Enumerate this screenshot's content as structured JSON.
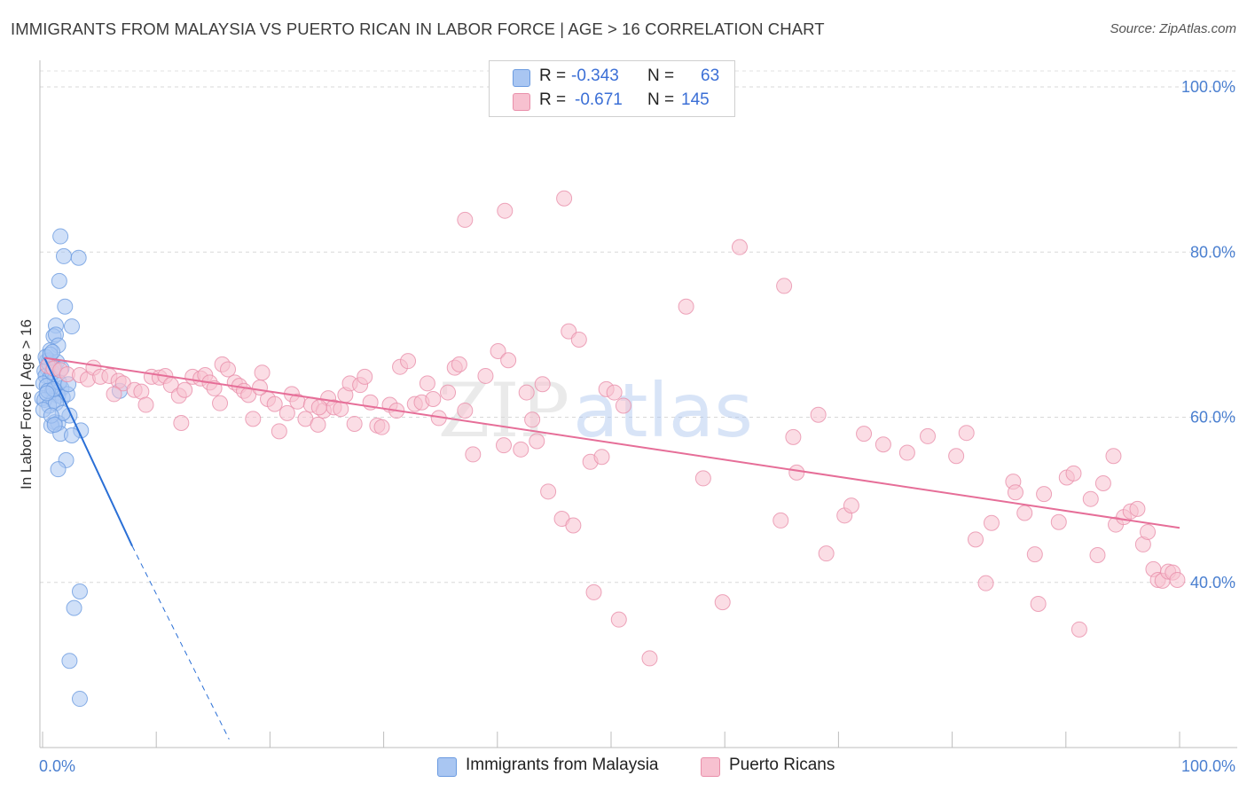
{
  "header": {
    "title": "IMMIGRANTS FROM MALAYSIA VS PUERTO RICAN IN LABOR FORCE | AGE > 16 CORRELATION CHART",
    "source": "Source: ZipAtlas.com"
  },
  "watermark": {
    "part1": "ZIP",
    "part2": "atlas"
  },
  "legend": {
    "items": [
      {
        "r_label": "R =",
        "r_value": "-0.343",
        "n_label": "N =",
        "n_value": "63",
        "color": "#a9c6f2",
        "border": "#6b9be0"
      },
      {
        "r_label": "R =",
        "r_value": "-0.671",
        "n_label": "N =",
        "n_value": "145",
        "color": "#f7c1d0",
        "border": "#e98faa"
      }
    ]
  },
  "bottom_legend": [
    {
      "label": "Immigrants from Malaysia",
      "color": "#a9c6f2",
      "border": "#6b9be0"
    },
    {
      "label": "Puerto Ricans",
      "color": "#f7c1d0",
      "border": "#e98faa"
    }
  ],
  "chart_data": {
    "type": "scatter",
    "xlabel": "",
    "ylabel": "In Labor Force | Age > 16",
    "xlim": [
      0,
      100
    ],
    "ylim": [
      20,
      100
    ],
    "x_tick_labels": [
      {
        "x": 0,
        "label": "0.0%"
      },
      {
        "x": 100,
        "label": "100.0%"
      }
    ],
    "y_tick_labels": [
      {
        "y": 100,
        "label": "100.0%"
      },
      {
        "y": 80,
        "label": "80.0%"
      },
      {
        "y": 60,
        "label": "60.0%"
      },
      {
        "y": 40,
        "label": "40.0%"
      }
    ],
    "grid": true,
    "legend_position": "top-center",
    "series": [
      {
        "name": "Immigrants from Malaysia",
        "color": "#6b9be0",
        "fill": "#a9c6f2",
        "trend_color": "#2a6fd6",
        "trend": {
          "x0": 0.4,
          "y0": 67.2,
          "x1": 8.1,
          "y1": 44.4,
          "x_dash_end": 16.6,
          "y_dash_end": 21.0
        },
        "points": [
          [
            1.8,
            81.9
          ],
          [
            2.1,
            79.5
          ],
          [
            3.4,
            79.3
          ],
          [
            1.7,
            76.5
          ],
          [
            2.2,
            73.4
          ],
          [
            1.4,
            71.1
          ],
          [
            2.8,
            71.0
          ],
          [
            1.2,
            69.8
          ],
          [
            1.4,
            70.0
          ],
          [
            1.6,
            68.7
          ],
          [
            0.9,
            68.1
          ],
          [
            0.6,
            66.8
          ],
          [
            0.8,
            66.9
          ],
          [
            1.0,
            66.4
          ],
          [
            1.3,
            66.0
          ],
          [
            0.7,
            65.8
          ],
          [
            0.4,
            65.6
          ],
          [
            0.5,
            65.0
          ],
          [
            0.9,
            64.8
          ],
          [
            1.3,
            64.6
          ],
          [
            0.3,
            64.1
          ],
          [
            0.6,
            63.8
          ],
          [
            1.1,
            63.2
          ],
          [
            1.9,
            63.5
          ],
          [
            1.5,
            63.0
          ],
          [
            1.6,
            62.6
          ],
          [
            2.0,
            62.4
          ],
          [
            2.4,
            62.8
          ],
          [
            0.2,
            62.3
          ],
          [
            0.4,
            62.1
          ],
          [
            1.2,
            62.0
          ],
          [
            0.8,
            61.4
          ],
          [
            0.3,
            60.9
          ],
          [
            2.6,
            60.2
          ],
          [
            1.3,
            59.4
          ],
          [
            1.6,
            59.3
          ],
          [
            1.0,
            59.0
          ],
          [
            3.6,
            58.4
          ],
          [
            1.8,
            58.0
          ],
          [
            2.8,
            57.8
          ],
          [
            2.3,
            54.8
          ],
          [
            1.6,
            53.7
          ],
          [
            0.8,
            66.5
          ],
          [
            1.5,
            66.7
          ],
          [
            1.1,
            65.4
          ],
          [
            0.5,
            67.3
          ],
          [
            1.9,
            65.9
          ],
          [
            0.7,
            63.2
          ],
          [
            1.4,
            61.7
          ],
          [
            2.0,
            60.5
          ],
          [
            0.9,
            67.6
          ],
          [
            1.7,
            64.2
          ],
          [
            1.2,
            63.4
          ],
          [
            0.6,
            62.9
          ],
          [
            2.5,
            64.0
          ],
          [
            1.0,
            60.2
          ],
          [
            1.3,
            59.1
          ],
          [
            7.0,
            63.2
          ],
          [
            3.5,
            38.9
          ],
          [
            3.0,
            36.9
          ],
          [
            2.6,
            30.5
          ],
          [
            3.5,
            25.9
          ],
          [
            1.1,
            67.9
          ]
        ]
      },
      {
        "name": "Puerto Ricans",
        "color": "#e98faa",
        "fill": "#f7c1d0",
        "trend_color": "#e66e98",
        "trend": {
          "x0": 0.4,
          "y0": 67.2,
          "x1": 100,
          "y1": 46.6
        },
        "points": [
          [
            0.7,
            66.2
          ],
          [
            1.2,
            65.9
          ],
          [
            1.8,
            65.7
          ],
          [
            2.4,
            65.2
          ],
          [
            3.5,
            65.1
          ],
          [
            4.2,
            64.6
          ],
          [
            4.7,
            66.0
          ],
          [
            5.3,
            64.9
          ],
          [
            6.1,
            65.0
          ],
          [
            6.9,
            64.4
          ],
          [
            7.3,
            64.1
          ],
          [
            8.3,
            63.3
          ],
          [
            8.9,
            63.1
          ],
          [
            9.8,
            64.9
          ],
          [
            10.5,
            64.8
          ],
          [
            11.0,
            65.0
          ],
          [
            11.5,
            63.9
          ],
          [
            12.2,
            62.6
          ],
          [
            12.7,
            63.3
          ],
          [
            12.4,
            59.3
          ],
          [
            13.4,
            64.9
          ],
          [
            14.1,
            64.7
          ],
          [
            14.5,
            65.1
          ],
          [
            14.9,
            64.2
          ],
          [
            15.3,
            63.5
          ],
          [
            15.8,
            61.7
          ],
          [
            16.0,
            66.4
          ],
          [
            16.5,
            65.8
          ],
          [
            17.1,
            64.2
          ],
          [
            17.5,
            63.8
          ],
          [
            17.9,
            63.2
          ],
          [
            18.3,
            62.7
          ],
          [
            18.7,
            59.8
          ],
          [
            19.5,
            65.4
          ],
          [
            20.0,
            62.2
          ],
          [
            20.6,
            61.6
          ],
          [
            21.0,
            58.3
          ],
          [
            21.7,
            60.5
          ],
          [
            22.1,
            62.8
          ],
          [
            22.6,
            61.9
          ],
          [
            23.3,
            59.8
          ],
          [
            23.8,
            61.5
          ],
          [
            24.4,
            59.1
          ],
          [
            24.9,
            60.8
          ],
          [
            25.3,
            62.3
          ],
          [
            25.8,
            61.2
          ],
          [
            26.4,
            61.0
          ],
          [
            26.8,
            62.7
          ],
          [
            27.2,
            64.1
          ],
          [
            27.6,
            59.2
          ],
          [
            28.1,
            63.9
          ],
          [
            28.5,
            64.9
          ],
          [
            29.0,
            61.8
          ],
          [
            29.6,
            59.0
          ],
          [
            30.0,
            58.8
          ],
          [
            30.7,
            61.5
          ],
          [
            31.3,
            60.8
          ],
          [
            31.6,
            66.1
          ],
          [
            32.3,
            66.8
          ],
          [
            32.9,
            61.6
          ],
          [
            33.5,
            61.8
          ],
          [
            34.0,
            64.1
          ],
          [
            34.5,
            62.2
          ],
          [
            35.0,
            59.9
          ],
          [
            35.8,
            63.0
          ],
          [
            36.4,
            66.0
          ],
          [
            36.8,
            66.4
          ],
          [
            37.3,
            60.8
          ],
          [
            38.0,
            55.5
          ],
          [
            37.3,
            83.9
          ],
          [
            39.1,
            65.0
          ],
          [
            40.2,
            68.0
          ],
          [
            40.7,
            56.6
          ],
          [
            41.1,
            66.9
          ],
          [
            42.2,
            56.1
          ],
          [
            42.7,
            63.0
          ],
          [
            43.2,
            59.7
          ],
          [
            43.6,
            57.1
          ],
          [
            44.1,
            64.0
          ],
          [
            44.6,
            51.0
          ],
          [
            45.8,
            47.7
          ],
          [
            46.4,
            70.4
          ],
          [
            47.3,
            69.4
          ],
          [
            46.8,
            46.9
          ],
          [
            48.3,
            54.6
          ],
          [
            48.6,
            38.8
          ],
          [
            49.3,
            55.2
          ],
          [
            49.7,
            63.4
          ],
          [
            50.4,
            63.0
          ],
          [
            51.2,
            61.4
          ],
          [
            50.8,
            35.5
          ],
          [
            53.5,
            30.8
          ],
          [
            56.7,
            73.4
          ],
          [
            58.2,
            52.6
          ],
          [
            59.9,
            37.6
          ],
          [
            61.4,
            80.6
          ],
          [
            65.0,
            47.5
          ],
          [
            65.3,
            75.9
          ],
          [
            66.1,
            57.6
          ],
          [
            66.4,
            53.3
          ],
          [
            68.3,
            60.3
          ],
          [
            69.0,
            43.5
          ],
          [
            70.6,
            48.1
          ],
          [
            71.2,
            49.3
          ],
          [
            72.3,
            58.0
          ],
          [
            74.0,
            56.7
          ],
          [
            76.1,
            55.7
          ],
          [
            77.9,
            57.7
          ],
          [
            80.4,
            55.3
          ],
          [
            81.3,
            58.1
          ],
          [
            82.1,
            45.2
          ],
          [
            83.0,
            39.9
          ],
          [
            83.5,
            47.2
          ],
          [
            85.4,
            52.2
          ],
          [
            85.6,
            50.9
          ],
          [
            86.4,
            48.4
          ],
          [
            87.3,
            43.4
          ],
          [
            87.6,
            37.4
          ],
          [
            88.1,
            50.7
          ],
          [
            89.4,
            47.3
          ],
          [
            90.1,
            52.7
          ],
          [
            90.7,
            53.2
          ],
          [
            91.2,
            34.3
          ],
          [
            92.2,
            50.1
          ],
          [
            92.8,
            43.3
          ],
          [
            93.3,
            52.0
          ],
          [
            94.2,
            55.3
          ],
          [
            94.4,
            47.0
          ],
          [
            95.1,
            47.9
          ],
          [
            95.7,
            48.6
          ],
          [
            96.3,
            48.9
          ],
          [
            96.8,
            44.6
          ],
          [
            97.2,
            46.1
          ],
          [
            97.7,
            41.6
          ],
          [
            98.1,
            40.3
          ],
          [
            98.5,
            40.2
          ],
          [
            99.0,
            41.3
          ],
          [
            99.4,
            41.2
          ],
          [
            99.8,
            40.3
          ],
          [
            40.8,
            85.0
          ],
          [
            46.0,
            86.5
          ],
          [
            19.3,
            63.6
          ],
          [
            24.5,
            61.2
          ],
          [
            6.5,
            62.8
          ],
          [
            9.3,
            61.5
          ]
        ]
      }
    ]
  }
}
